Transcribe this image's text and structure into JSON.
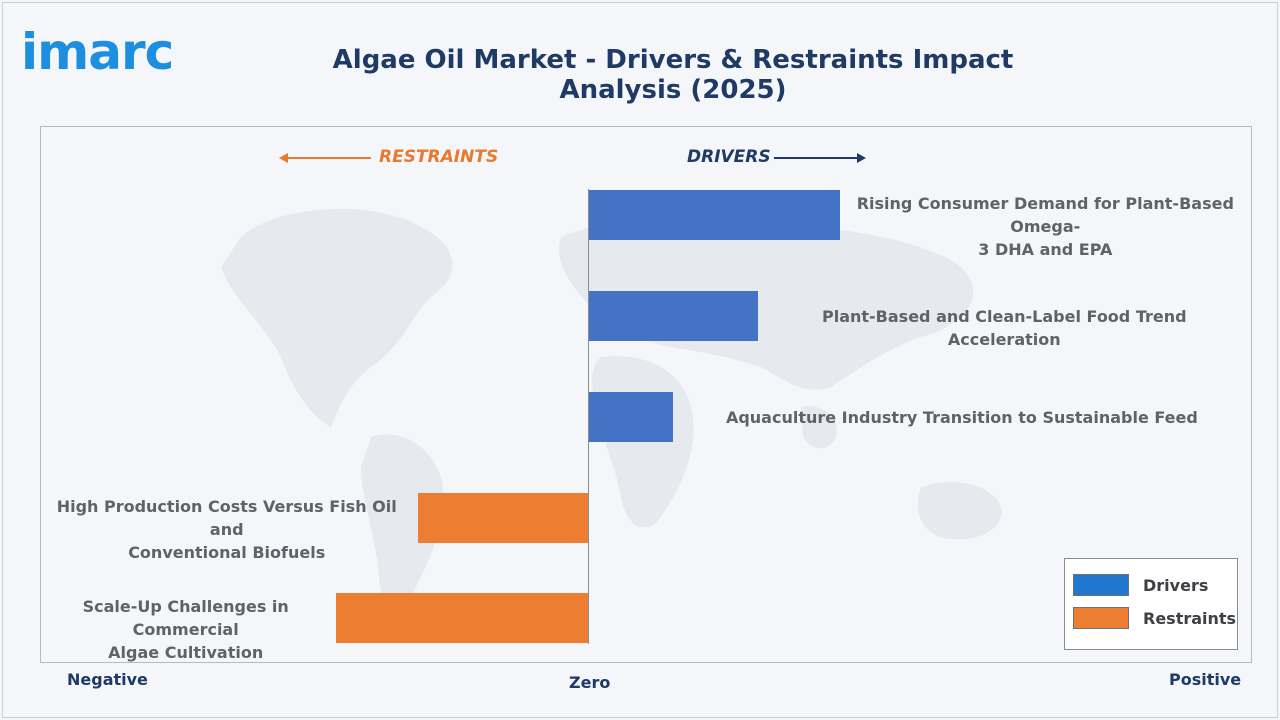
{
  "logo": {
    "text": "imarc"
  },
  "chart_data": {
    "type": "bar",
    "orientation": "horizontal",
    "title": "Algae Oil Market - Drivers & Restraints Impact Analysis (2025)",
    "direction_labels": {
      "restraints": "RESTRAINTS",
      "drivers": "DRIVERS"
    },
    "axis_labels": {
      "negative": "Negative",
      "zero": "Zero",
      "positive": "Positive"
    },
    "xlim": [
      -1,
      1
    ],
    "categories": [
      "Rising Consumer Demand for Plant-Based Omega-3 DHA and EPA",
      "Plant-Based and Clean-Label Food Trend Acceleration",
      "Aquaculture Industry Transition to Sustainable Feed",
      "High Production Costs Versus Fish Oil and Conventional Biofuels",
      "Scale-Up Challenges in Commercial Algae Cultivation"
    ],
    "label_lines": [
      [
        "Rising Consumer Demand for Plant-Based Omega-",
        "3 DHA and EPA"
      ],
      [
        "Plant-Based and Clean-Label Food Trend Acceleration"
      ],
      [
        "Aquaculture Industry Transition to Sustainable Feed"
      ],
      [
        "High Production Costs Versus Fish Oil and",
        "Conventional Biofuels"
      ],
      [
        "Scale-Up Challenges in Commercial",
        "Algae Cultivation"
      ]
    ],
    "values": [
      0.46,
      0.31,
      0.155,
      -0.31,
      -0.46
    ],
    "series_group": [
      "Drivers",
      "Drivers",
      "Drivers",
      "Restraints",
      "Restraints"
    ],
    "legend": {
      "position": "bottom-right",
      "entries": [
        {
          "name": "Drivers",
          "color": "#4472c4"
        },
        {
          "name": "Restraints",
          "color": "#ed7d31"
        }
      ]
    },
    "colors": {
      "drivers": "#4472c4",
      "restraints": "#ed7d31"
    }
  }
}
